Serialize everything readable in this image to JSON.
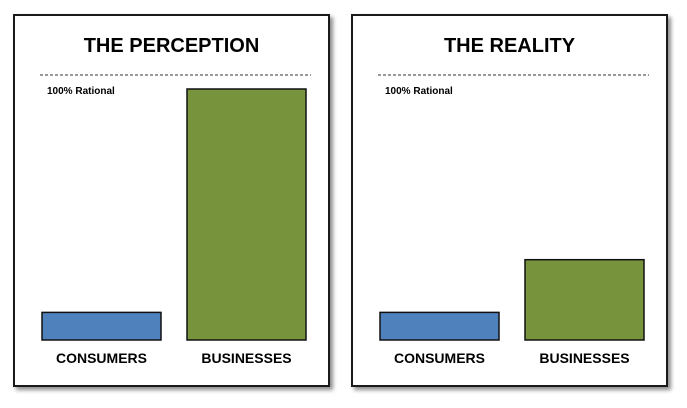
{
  "chart_data": [
    {
      "type": "bar",
      "title": "THE PERCEPTION",
      "reference_label": "100% Rational",
      "reference_value": 100,
      "categories": [
        "CONSUMERS",
        "BUSINESSES"
      ],
      "values": [
        11,
        100
      ],
      "colors": [
        "#4f81bd",
        "#77933c"
      ],
      "ylim": [
        0,
        100
      ],
      "grid": false,
      "xlabel": "",
      "ylabel": ""
    },
    {
      "type": "bar",
      "title": "THE REALITY",
      "reference_label": "100% Rational",
      "reference_value": 100,
      "categories": [
        "CONSUMERS",
        "BUSINESSES"
      ],
      "values": [
        11,
        32
      ],
      "colors": [
        "#4f81bd",
        "#77933c"
      ],
      "ylim": [
        0,
        100
      ],
      "grid": false,
      "xlabel": "",
      "ylabel": ""
    }
  ]
}
